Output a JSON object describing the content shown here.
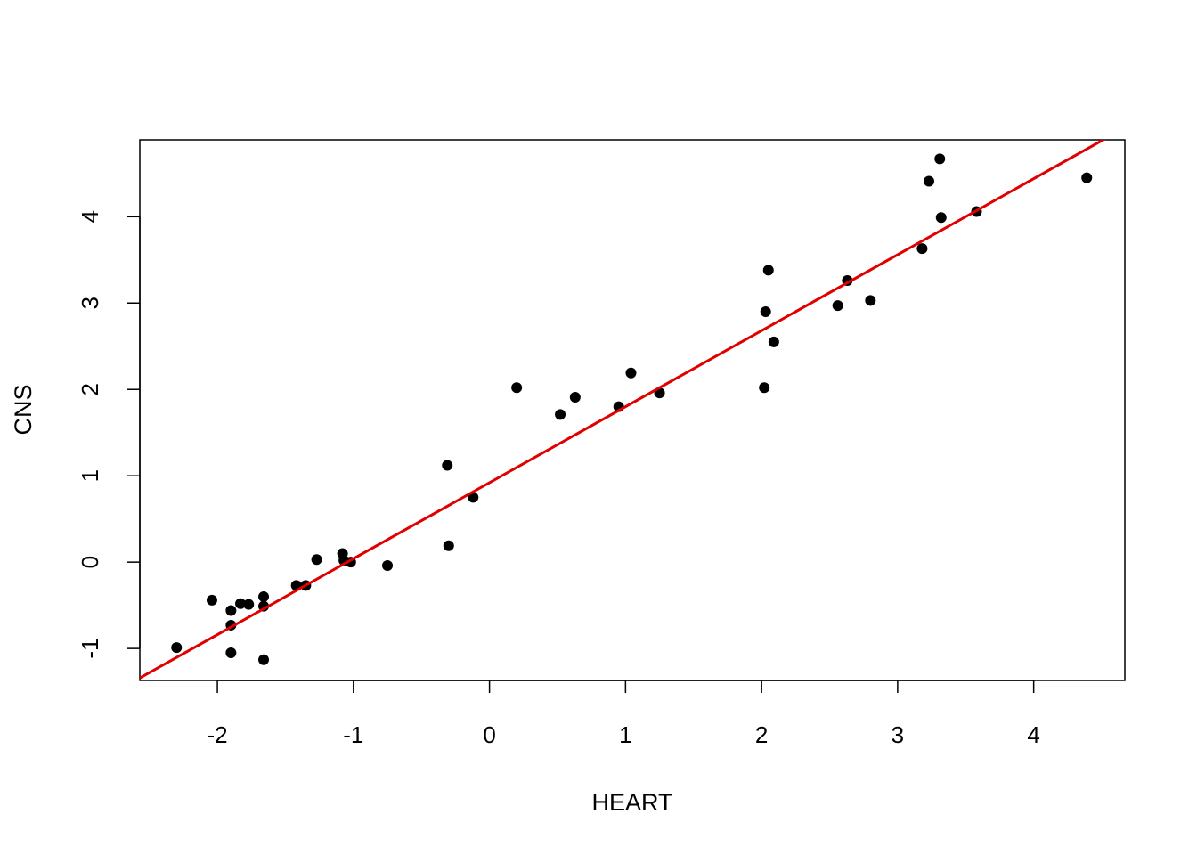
{
  "chart_data": {
    "type": "scatter",
    "title": "",
    "xlabel": "HEART",
    "ylabel": "CNS",
    "xlim": [
      -2.57,
      4.67
    ],
    "ylim": [
      -1.37,
      4.89
    ],
    "xticks": [
      -2,
      -1,
      0,
      1,
      2,
      3,
      4
    ],
    "yticks": [
      -1,
      0,
      1,
      2,
      3,
      4
    ],
    "xtick_labels": [
      "-2",
      "-1",
      "0",
      "1",
      "2",
      "3",
      "4"
    ],
    "ytick_labels": [
      "-1",
      "0",
      "1",
      "2",
      "3",
      "4"
    ],
    "grid": false,
    "point_color": "#000000",
    "line_color": "#e00000",
    "points": [
      {
        "x": -2.3,
        "y": -0.99
      },
      {
        "x": -2.04,
        "y": -0.44
      },
      {
        "x": -1.9,
        "y": -0.56
      },
      {
        "x": -1.9,
        "y": -0.73
      },
      {
        "x": -1.9,
        "y": -1.05
      },
      {
        "x": -1.83,
        "y": -0.48
      },
      {
        "x": -1.77,
        "y": -0.49
      },
      {
        "x": -1.66,
        "y": -0.4
      },
      {
        "x": -1.66,
        "y": -0.51
      },
      {
        "x": -1.66,
        "y": -1.13
      },
      {
        "x": -1.42,
        "y": -0.27
      },
      {
        "x": -1.35,
        "y": -0.27
      },
      {
        "x": -1.27,
        "y": 0.03
      },
      {
        "x": -1.08,
        "y": 0.1
      },
      {
        "x": -1.07,
        "y": 0.02
      },
      {
        "x": -1.02,
        "y": 0.0
      },
      {
        "x": -0.75,
        "y": -0.04
      },
      {
        "x": -0.31,
        "y": 1.12
      },
      {
        "x": -0.3,
        "y": 0.19
      },
      {
        "x": -0.12,
        "y": 0.75
      },
      {
        "x": 0.2,
        "y": 2.02
      },
      {
        "x": 0.52,
        "y": 1.71
      },
      {
        "x": 0.63,
        "y": 1.91
      },
      {
        "x": 0.95,
        "y": 1.8
      },
      {
        "x": 1.04,
        "y": 2.19
      },
      {
        "x": 1.25,
        "y": 1.96
      },
      {
        "x": 2.02,
        "y": 2.02
      },
      {
        "x": 2.03,
        "y": 2.9
      },
      {
        "x": 2.05,
        "y": 3.38
      },
      {
        "x": 2.09,
        "y": 2.55
      },
      {
        "x": 2.56,
        "y": 2.97
      },
      {
        "x": 2.63,
        "y": 3.26
      },
      {
        "x": 2.8,
        "y": 3.03
      },
      {
        "x": 3.18,
        "y": 3.63
      },
      {
        "x": 3.23,
        "y": 4.41
      },
      {
        "x": 3.31,
        "y": 4.67
      },
      {
        "x": 3.32,
        "y": 3.99
      },
      {
        "x": 3.58,
        "y": 4.06
      },
      {
        "x": 4.39,
        "y": 4.45
      }
    ],
    "regression_line": {
      "intercept": 0.92,
      "slope": 0.88
    }
  }
}
